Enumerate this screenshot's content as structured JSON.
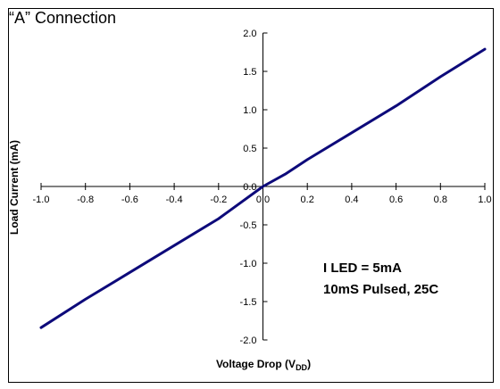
{
  "chart_data": {
    "type": "line",
    "title": "“A” Connection",
    "xlabel": "Voltage Drop (V",
    "xlabel_sub": "DD",
    "xlabel_end": ")",
    "ylabel": "Load Current (mA)",
    "xlim": [
      -1.0,
      1.0
    ],
    "ylim": [
      -2.0,
      2.0
    ],
    "x_ticks": [
      "-1.0",
      "-0.8",
      "-0.6",
      "-0.4",
      "-0.2",
      "0.0",
      "0.2",
      "0.4",
      "0.6",
      "0.8",
      "1.0"
    ],
    "y_ticks": [
      "2.0",
      "1.5",
      "1.0",
      "0.5",
      "0.0",
      "-0.5",
      "-1.0",
      "-1.5",
      "-2.0"
    ],
    "annotations": [
      "I LED = 5mA",
      "10mS Pulsed, 25C"
    ],
    "series": [
      {
        "color": "#0d0a7a",
        "x": [
          -1.0,
          -0.8,
          -0.6,
          -0.4,
          -0.2,
          0.0,
          0.1,
          0.2,
          0.4,
          0.6,
          0.8,
          1.0
        ],
        "y": [
          -1.84,
          -1.47,
          -1.12,
          -0.77,
          -0.42,
          0.0,
          0.16,
          0.35,
          0.7,
          1.05,
          1.43,
          1.79
        ]
      }
    ]
  }
}
